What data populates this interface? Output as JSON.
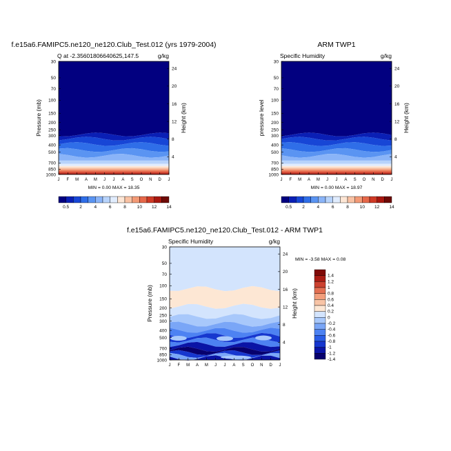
{
  "colors": {
    "seq": [
      "#020080",
      "#0a1fb5",
      "#1746d6",
      "#2f6ee8",
      "#5a94f2",
      "#8ab4f8",
      "#b7d3fb",
      "#e0ecfd",
      "#fde6d5",
      "#f9c2a4",
      "#f39a76",
      "#e6684a",
      "#cf3a25",
      "#a8170f",
      "#6d0a06"
    ],
    "diff": [
      "#07006d",
      "#0a14a6",
      "#1637cf",
      "#2a5de6",
      "#4d82f2",
      "#7aa6f7",
      "#a8c8fb",
      "#d3e4fd",
      "#fde7d4",
      "#f8c4a6",
      "#f29e7c",
      "#e36f52",
      "#cc4230",
      "#aa1c14",
      "#7f0a07"
    ]
  },
  "chart_data": [
    {
      "type": "heatmap",
      "title": "f.e15a6.FAMIPC5.ne120_ne120.Club_Test.012 (yrs 1979-2004)",
      "subtitle_left": "Q at -2.35601806640625,147.5",
      "subtitle_right": "g/kg",
      "xlabel": "",
      "ylabel": "Pressure (mb)",
      "ylabel_right": "Height (km)",
      "x": [
        "J",
        "F",
        "M",
        "A",
        "M",
        "J",
        "J",
        "A",
        "S",
        "O",
        "N",
        "D",
        "J"
      ],
      "y_ticks": [
        "30",
        "50",
        "70",
        "100",
        "150",
        "200",
        "250",
        "300",
        "400",
        "500",
        "700",
        "850",
        "1000"
      ],
      "y_ticks_right": [
        "24",
        "20",
        "16",
        "12",
        "8",
        "4"
      ],
      "minmax": "MIN =   0.00 MAX =  18.35",
      "min": 0.0,
      "max": 18.35,
      "legend_labels": [
        "0.5",
        "2",
        "4",
        "6",
        "8",
        "10",
        "12",
        "14"
      ],
      "scale": "log-pressure"
    },
    {
      "type": "heatmap",
      "title": "ARM TWP1",
      "subtitle_left": "Specific Humidity",
      "subtitle_right": "g/kg",
      "xlabel": "",
      "ylabel": "pressure level",
      "ylabel_right": "Height (km)",
      "x": [
        "J",
        "F",
        "M",
        "A",
        "M",
        "J",
        "J",
        "A",
        "S",
        "O",
        "N",
        "D",
        "J"
      ],
      "y_ticks": [
        "30",
        "50",
        "70",
        "100",
        "150",
        "200",
        "250",
        "300",
        "400",
        "500",
        "700",
        "850",
        "1000"
      ],
      "y_ticks_right": [
        "24",
        "20",
        "16",
        "12",
        "8",
        "4"
      ],
      "minmax": "MIN =   0.00 MAX =  18.97",
      "min": 0.0,
      "max": 18.97,
      "legend_labels": [
        "0.5",
        "2",
        "4",
        "6",
        "8",
        "10",
        "12",
        "14"
      ],
      "scale": "log-pressure"
    },
    {
      "type": "heatmap",
      "title": "f.e15a6.FAMIPC5.ne120_ne120.Club_Test.012 - ARM TWP1",
      "subtitle_left": "Specific Humidity",
      "subtitle_right": "g/kg",
      "xlabel": "",
      "ylabel": "Pressure (mb)",
      "ylabel_right": "Height (km)",
      "x": [
        "J",
        "F",
        "M",
        "A",
        "M",
        "J",
        "J",
        "A",
        "S",
        "O",
        "N",
        "D",
        "J"
      ],
      "y_ticks": [
        "30",
        "50",
        "70",
        "100",
        "150",
        "200",
        "250",
        "300",
        "400",
        "500",
        "700",
        "850",
        "1000"
      ],
      "y_ticks_right": [
        "24",
        "20",
        "16",
        "12",
        "8",
        "4"
      ],
      "minmax": "MIN =  -3.58 MAX =   0.08",
      "min": -3.58,
      "max": 0.08,
      "legend_labels": [
        "1.4",
        "1.2",
        "1",
        "0.8",
        "0.6",
        "0.4",
        "0.2",
        "0",
        "-0.2",
        "-0.4",
        "-0.6",
        "-0.8",
        "-1",
        "-1.2",
        "-1.4"
      ],
      "scale": "log-pressure"
    }
  ]
}
